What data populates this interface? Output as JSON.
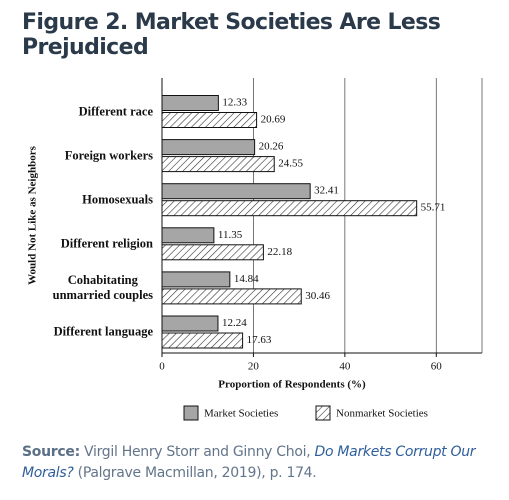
{
  "header": {
    "title": "Figure 2. Market Societies Are Less Prejudiced"
  },
  "chart_data": {
    "type": "bar",
    "orientation": "horizontal",
    "categories": [
      "Different race",
      "Foreign workers",
      "Homosexuals",
      "Different religion",
      "Cohabitating\nunmarried couples",
      "Different language"
    ],
    "series": [
      {
        "name": "Market Societies",
        "color": "#a6a6a6",
        "values": [
          12.33,
          20.26,
          32.41,
          11.35,
          14.84,
          12.24
        ]
      },
      {
        "name": "Nonmarket Societies",
        "color": "#333333",
        "pattern": "hatch",
        "values": [
          20.69,
          24.55,
          55.71,
          22.18,
          30.46,
          17.63
        ]
      }
    ],
    "xlim": [
      0,
      70
    ],
    "xticks": [
      0,
      20,
      40,
      60
    ],
    "grid": true,
    "x_label": "Proportion of Respondents (%)",
    "y_label": "Would Not Like as Neighbors",
    "legend": "bottom"
  },
  "source": {
    "label": "Source:",
    "text_before": "Virgil Henry Storr and Ginny Choi,",
    "book_title": "Do Markets Corrupt Our Morals?",
    "text_after": "(Palgrave Macmillan, 2019), p. 174."
  }
}
